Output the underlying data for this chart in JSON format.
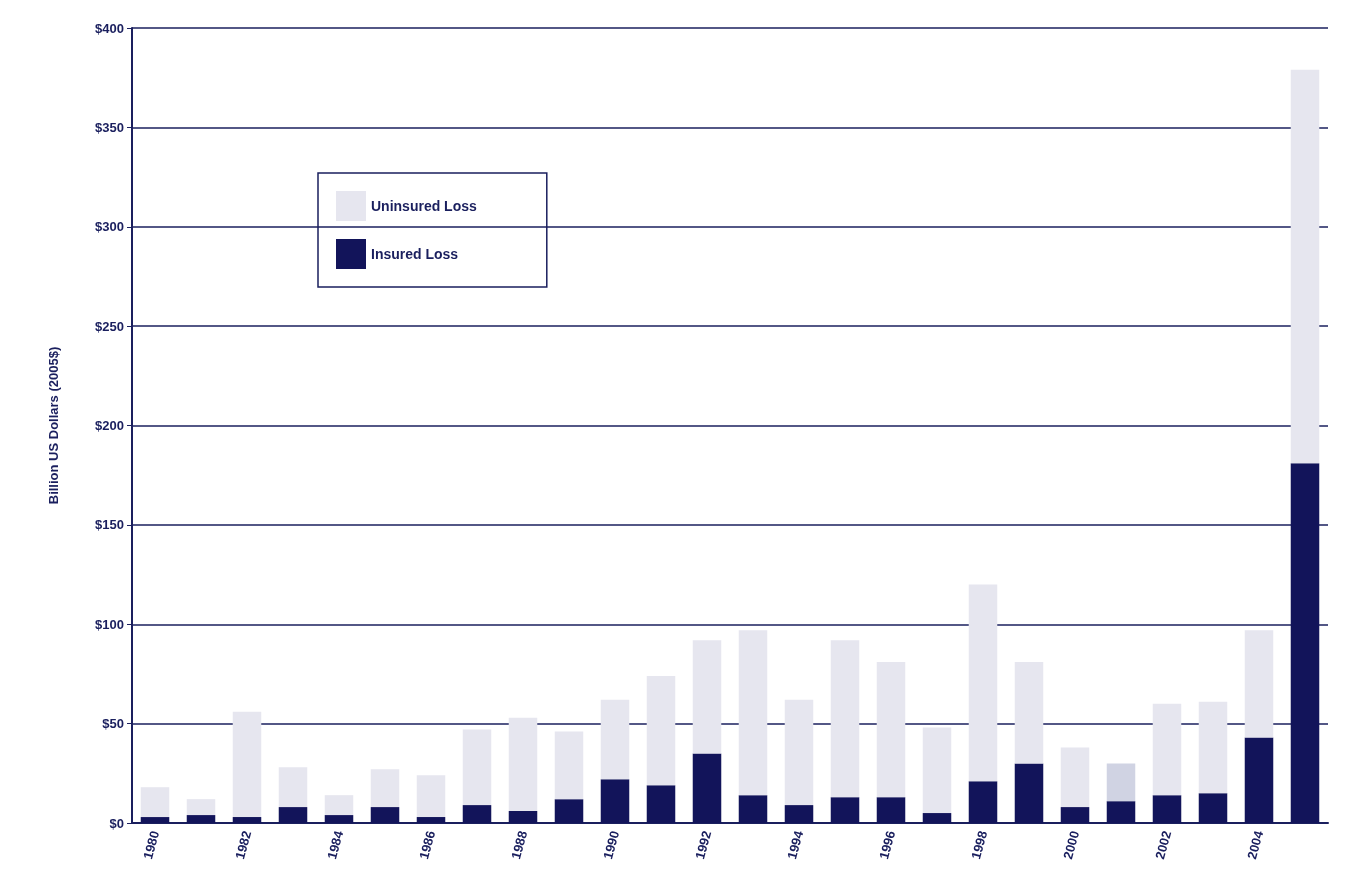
{
  "chart_data": {
    "type": "bar",
    "stacked": true,
    "ylabel": "Billion US Dollars (2005$)",
    "categories": [
      "1980",
      null,
      "1982",
      null,
      "1984",
      null,
      "1986",
      null,
      "1988",
      null,
      "1990",
      null,
      "1992",
      null,
      "1994",
      null,
      "1996",
      null,
      "1998",
      null,
      "2000",
      null,
      "2002",
      null,
      "2004",
      null
    ],
    "series": [
      {
        "name": "Insured Loss",
        "color": "#12145a",
        "values": [
          3,
          4,
          3,
          8,
          4,
          8,
          3,
          9,
          6,
          12,
          22,
          19,
          35,
          14,
          9,
          13,
          13,
          5,
          21,
          30,
          8,
          11,
          14,
          15,
          43,
          181
        ]
      },
      {
        "name": "Uninsured Loss",
        "color": "#e6e6ef",
        "colors": [
          "#e6e6ef",
          "#e6e6ef",
          "#e6e6ef",
          "#e6e6ef",
          "#e6e6ef",
          "#e6e6ef",
          "#e6e6ef",
          "#e6e6ef",
          "#e6e6ef",
          "#e6e6ef",
          "#e6e6ef",
          "#e6e6ef",
          "#e6e6ef",
          "#e6e6ef",
          "#e6e6ef",
          "#e6e6ef",
          "#e6e6ef",
          "#e6e6ef",
          "#e6e6ef",
          "#e6e6ef",
          "#e6e6ef",
          "#d0d3e3",
          "#e6e6ef",
          "#e6e6ef",
          "#e6e6ef",
          "#e6e6ef"
        ],
        "values": [
          15,
          8,
          53,
          20,
          10,
          19,
          21,
          38,
          47,
          34,
          40,
          55,
          57,
          83,
          53,
          79,
          68,
          43,
          99,
          51,
          30,
          19,
          46,
          46,
          54,
          198
        ]
      }
    ],
    "ylim": [
      0,
      400
    ],
    "yticks": [
      {
        "value": 0,
        "label": "$0"
      },
      {
        "value": 50,
        "label": "$50"
      },
      {
        "value": 100,
        "label": "$100"
      },
      {
        "value": 150,
        "label": "$150"
      },
      {
        "value": 200,
        "label": "$200"
      },
      {
        "value": 250,
        "label": "$250"
      },
      {
        "value": 300,
        "label": "$300"
      },
      {
        "value": 350,
        "label": "$350"
      },
      {
        "value": 400,
        "label": "$400"
      }
    ],
    "grid": "y",
    "legend": "top left"
  }
}
